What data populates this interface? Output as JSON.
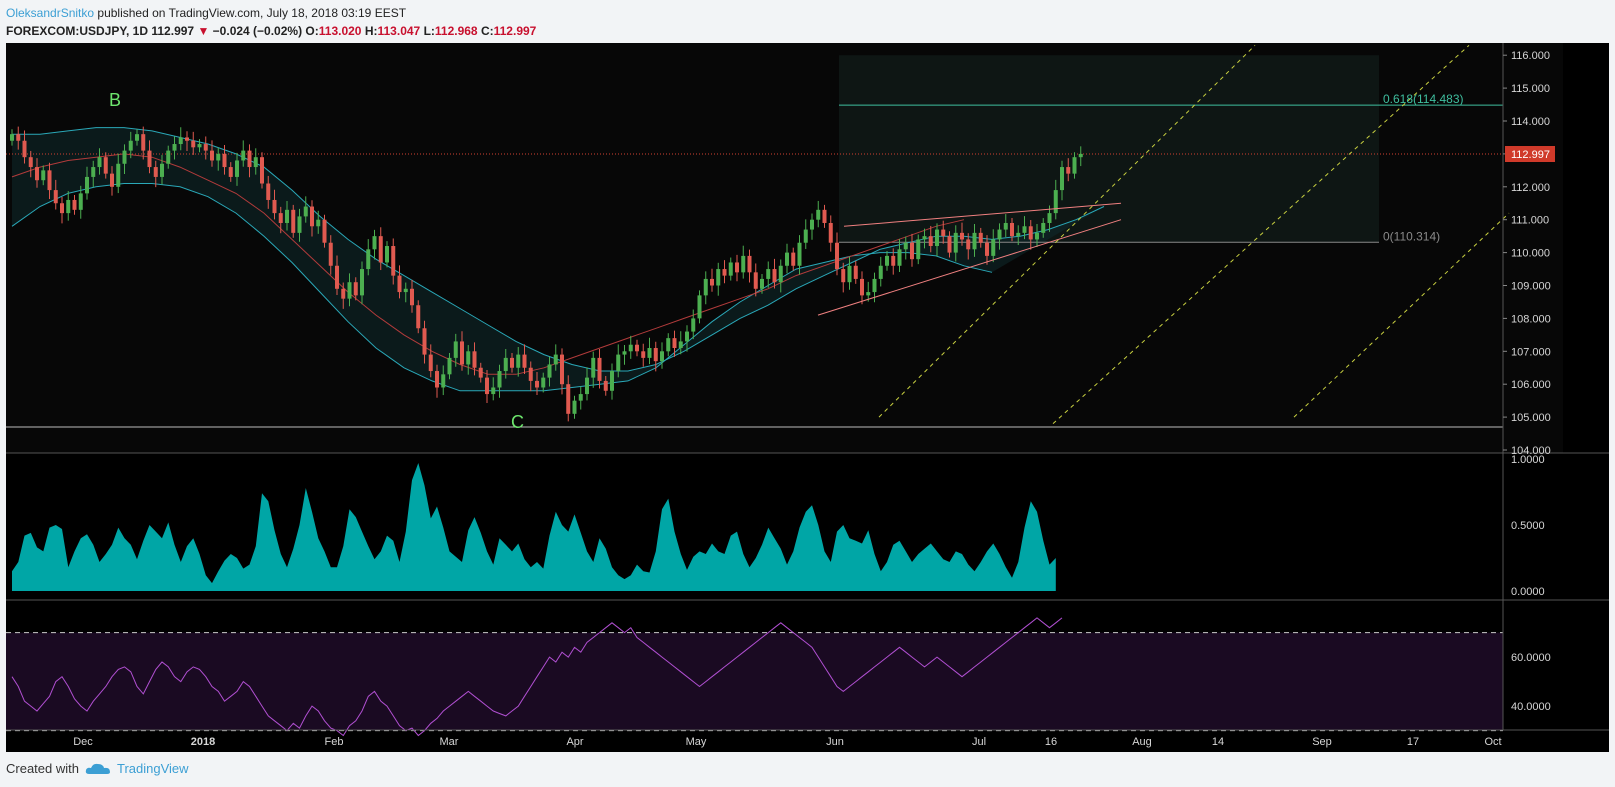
{
  "header": {
    "author": "OleksandrSnitko",
    "published": "published on TradingView.com, July 18, 2018 03:19 EEST",
    "symbol": "FOREXCOM:USDJPY, 1D",
    "price": "112.997",
    "change": "−0.024 (−0.02%)",
    "o_label": "O:",
    "o_value": "113.020",
    "h_label": "H:",
    "h_value": "113.047",
    "l_label": "L:",
    "l_value": "112.968",
    "c_label": "C:",
    "c_value": "112.997"
  },
  "footer": {
    "created_with": "Created with",
    "brand": "TradingView"
  },
  "colors": {
    "background": "#000000",
    "bull": "#4caf50",
    "bear": "#e05a50",
    "band": "#2aa8b8",
    "ma_red": "#b23b3b",
    "volatility": "#00a6a6",
    "rsi": "#b04fd1",
    "fib": "#3fbf9f",
    "channel": "#c8d040",
    "trend": "#f08080"
  },
  "chart_data": [
    {
      "type": "candlestick",
      "panel": "price",
      "y_ticks": [
        "116.000",
        "115.000",
        "114.000",
        "113.000",
        "112.000",
        "111.000",
        "110.000",
        "109.000",
        "108.000",
        "107.000",
        "106.000",
        "105.000",
        "104.000"
      ],
      "ylim": [
        103.75,
        116.25
      ],
      "current_price_label": "112.997",
      "x_ticks": [
        "Dec",
        "2018",
        "Feb",
        "Mar",
        "Apr",
        "May",
        "Jun",
        "Jul",
        "16",
        "Aug",
        "14",
        "Sep",
        "17",
        "Oct"
      ],
      "annotations": [
        {
          "text": "B"
        },
        {
          "text": "C"
        },
        {
          "text": "0.618(114.483)",
          "value": 114.483
        },
        {
          "text": "0(110.314)",
          "value": 110.314
        }
      ],
      "closes": [
        113.6,
        113.4,
        112.9,
        112.6,
        112.2,
        112.5,
        111.9,
        111.5,
        111.2,
        111.6,
        111.3,
        111.8,
        112.3,
        112.6,
        112.9,
        112.4,
        112.0,
        112.7,
        113.1,
        113.4,
        113.6,
        113.1,
        112.6,
        112.3,
        112.7,
        113.1,
        113.3,
        113.5,
        113.4,
        113.2,
        113.3,
        113.1,
        112.8,
        113.0,
        112.6,
        112.3,
        112.8,
        113.1,
        112.6,
        112.9,
        112.1,
        111.6,
        111.2,
        110.9,
        111.3,
        110.6,
        111.1,
        111.4,
        110.8,
        111.0,
        110.3,
        109.6,
        108.9,
        108.6,
        109.1,
        108.7,
        109.5,
        110.1,
        110.5,
        109.7,
        110.2,
        109.3,
        108.8,
        108.9,
        108.4,
        107.7,
        106.9,
        106.4,
        105.9,
        106.3,
        106.8,
        107.3,
        106.6,
        107.0,
        106.5,
        106.2,
        105.7,
        105.9,
        106.4,
        106.8,
        106.5,
        106.9,
        106.5,
        106.1,
        105.9,
        106.2,
        106.6,
        106.9,
        106.0,
        105.1,
        105.5,
        105.7,
        106.2,
        106.8,
        106.1,
        105.8,
        106.4,
        106.9,
        107.0,
        107.2,
        107.0,
        106.8,
        107.1,
        106.7,
        107.0,
        107.4,
        107.1,
        107.3,
        107.6,
        108.0,
        108.7,
        109.2,
        109.0,
        109.5,
        109.3,
        109.7,
        109.4,
        109.9,
        109.4,
        108.9,
        109.2,
        109.5,
        109.1,
        109.6,
        110.0,
        109.6,
        110.3,
        110.7,
        111.0,
        111.3,
        110.9,
        110.3,
        109.5,
        109.1,
        109.6,
        109.2,
        108.7,
        108.8,
        109.2,
        109.6,
        109.9,
        109.6,
        110.1,
        110.3,
        109.8,
        110.4,
        110.5,
        110.2,
        110.7,
        110.5,
        110.0,
        110.6,
        110.4,
        110.1,
        110.6,
        110.3,
        109.9,
        110.4,
        110.7,
        110.9,
        110.5,
        110.6,
        110.8,
        110.4,
        110.6,
        110.9,
        111.2,
        111.9,
        112.6,
        112.4,
        112.9,
        113.0
      ],
      "series": [
        {
          "name": "",
          "kind": "bollinger_upper",
          "x_start": 0,
          "values": [
            113.6,
            113.6,
            113.7,
            113.8,
            113.8,
            113.7,
            113.5,
            113.3,
            113.0,
            112.6,
            111.9,
            111.1,
            110.4,
            109.8,
            109.3,
            108.8,
            108.3,
            107.8,
            107.3,
            106.9,
            106.6,
            106.4,
            106.4,
            106.6,
            107.0,
            107.5,
            108.0,
            108.4,
            108.9,
            109.3,
            109.7,
            110.1,
            110.3,
            110.5,
            110.5,
            110.4,
            110.5,
            110.7,
            111.0,
            111.4
          ]
        },
        {
          "name": "",
          "kind": "bollinger_lower",
          "x_start": 0,
          "values": [
            110.8,
            111.4,
            111.8,
            112.0,
            112.1,
            112.1,
            112.0,
            111.7,
            111.2,
            110.5,
            109.7,
            108.8,
            107.9,
            107.1,
            106.5,
            106.1,
            105.8,
            105.8,
            105.8,
            105.8,
            105.9,
            106.0,
            106.1,
            106.5,
            107.2,
            107.9,
            108.5,
            109.0,
            109.5,
            109.7,
            109.9,
            110.0,
            110.0,
            109.9,
            109.6,
            109.4
          ]
        },
        {
          "name": "",
          "kind": "moving_average",
          "x_start": 0,
          "values": [
            112.3,
            112.6,
            112.8,
            112.9,
            113.0,
            112.9,
            112.6,
            112.2,
            111.8,
            111.2,
            110.4,
            109.6,
            108.8,
            108.1,
            107.5,
            107.0,
            106.6,
            106.3,
            106.3,
            106.5,
            106.8,
            107.1,
            107.4,
            107.7,
            108.0,
            108.3,
            108.6,
            108.9,
            109.3,
            109.6,
            109.9,
            110.2,
            110.5,
            110.8,
            111.0
          ]
        }
      ]
    },
    {
      "type": "area",
      "panel": "volatility",
      "y_ticks": [
        "1.0000",
        "0.5000",
        "0.0000"
      ],
      "ylim": [
        0,
        1.0
      ],
      "values": [
        0.15,
        0.22,
        0.42,
        0.44,
        0.33,
        0.3,
        0.48,
        0.5,
        0.47,
        0.18,
        0.3,
        0.4,
        0.43,
        0.35,
        0.22,
        0.28,
        0.35,
        0.48,
        0.4,
        0.35,
        0.24,
        0.38,
        0.5,
        0.45,
        0.4,
        0.52,
        0.35,
        0.22,
        0.34,
        0.4,
        0.28,
        0.12,
        0.06,
        0.15,
        0.23,
        0.28,
        0.25,
        0.17,
        0.2,
        0.34,
        0.74,
        0.68,
        0.46,
        0.28,
        0.18,
        0.32,
        0.5,
        0.78,
        0.6,
        0.4,
        0.3,
        0.18,
        0.18,
        0.34,
        0.62,
        0.56,
        0.45,
        0.34,
        0.24,
        0.3,
        0.42,
        0.38,
        0.22,
        0.45,
        0.84,
        0.97,
        0.8,
        0.55,
        0.64,
        0.48,
        0.3,
        0.26,
        0.22,
        0.46,
        0.56,
        0.44,
        0.3,
        0.2,
        0.4,
        0.35,
        0.3,
        0.36,
        0.24,
        0.18,
        0.22,
        0.17,
        0.42,
        0.6,
        0.5,
        0.45,
        0.58,
        0.44,
        0.3,
        0.22,
        0.4,
        0.32,
        0.18,
        0.12,
        0.09,
        0.12,
        0.2,
        0.15,
        0.14,
        0.3,
        0.62,
        0.7,
        0.45,
        0.28,
        0.16,
        0.26,
        0.3,
        0.28,
        0.36,
        0.3,
        0.28,
        0.42,
        0.45,
        0.28,
        0.18,
        0.25,
        0.35,
        0.48,
        0.4,
        0.32,
        0.2,
        0.3,
        0.48,
        0.6,
        0.65,
        0.5,
        0.3,
        0.22,
        0.45,
        0.5,
        0.4,
        0.38,
        0.36,
        0.46,
        0.28,
        0.15,
        0.22,
        0.35,
        0.38,
        0.3,
        0.22,
        0.28,
        0.32,
        0.36,
        0.3,
        0.24,
        0.22,
        0.3,
        0.28,
        0.2,
        0.15,
        0.22,
        0.3,
        0.36,
        0.28,
        0.18,
        0.1,
        0.22,
        0.48,
        0.68,
        0.6,
        0.38,
        0.2,
        0.25
      ]
    },
    {
      "type": "line",
      "panel": "rsi",
      "y_ticks": [
        "60.0000",
        "40.0000"
      ],
      "ylim": [
        26,
        78
      ],
      "reference_lines": [
        70,
        30
      ],
      "values": [
        52,
        48,
        42,
        40,
        38,
        41,
        44,
        50,
        52,
        48,
        43,
        40,
        38,
        42,
        45,
        48,
        52,
        55,
        56,
        54,
        48,
        45,
        50,
        55,
        58,
        56,
        52,
        50,
        54,
        56,
        55,
        52,
        48,
        46,
        42,
        44,
        46,
        50,
        48,
        44,
        40,
        36,
        34,
        32,
        30,
        33,
        31,
        36,
        40,
        38,
        34,
        31,
        30,
        28,
        32,
        34,
        38,
        44,
        46,
        42,
        40,
        36,
        32,
        30,
        31,
        28,
        30,
        33,
        35,
        38,
        40,
        42,
        44,
        46,
        44,
        42,
        40,
        38,
        37,
        36,
        38,
        40,
        44,
        48,
        52,
        56,
        60,
        58,
        62,
        60,
        64,
        62,
        66,
        68,
        70,
        72,
        74,
        72,
        70,
        72,
        68,
        66,
        64,
        62,
        60,
        58,
        56,
        54,
        52,
        50,
        48,
        50,
        52,
        54,
        56,
        58,
        60,
        62,
        64,
        66,
        68,
        70,
        72,
        74,
        72,
        70,
        68,
        66,
        64,
        60,
        56,
        52,
        48,
        46,
        48,
        50,
        52,
        54,
        56,
        58,
        60,
        62,
        64,
        62,
        60,
        58,
        56,
        58,
        60,
        58,
        56,
        54,
        52,
        54,
        56,
        58,
        60,
        62,
        64,
        66,
        68,
        70,
        72,
        74,
        76,
        74,
        72,
        74,
        76
      ]
    }
  ]
}
